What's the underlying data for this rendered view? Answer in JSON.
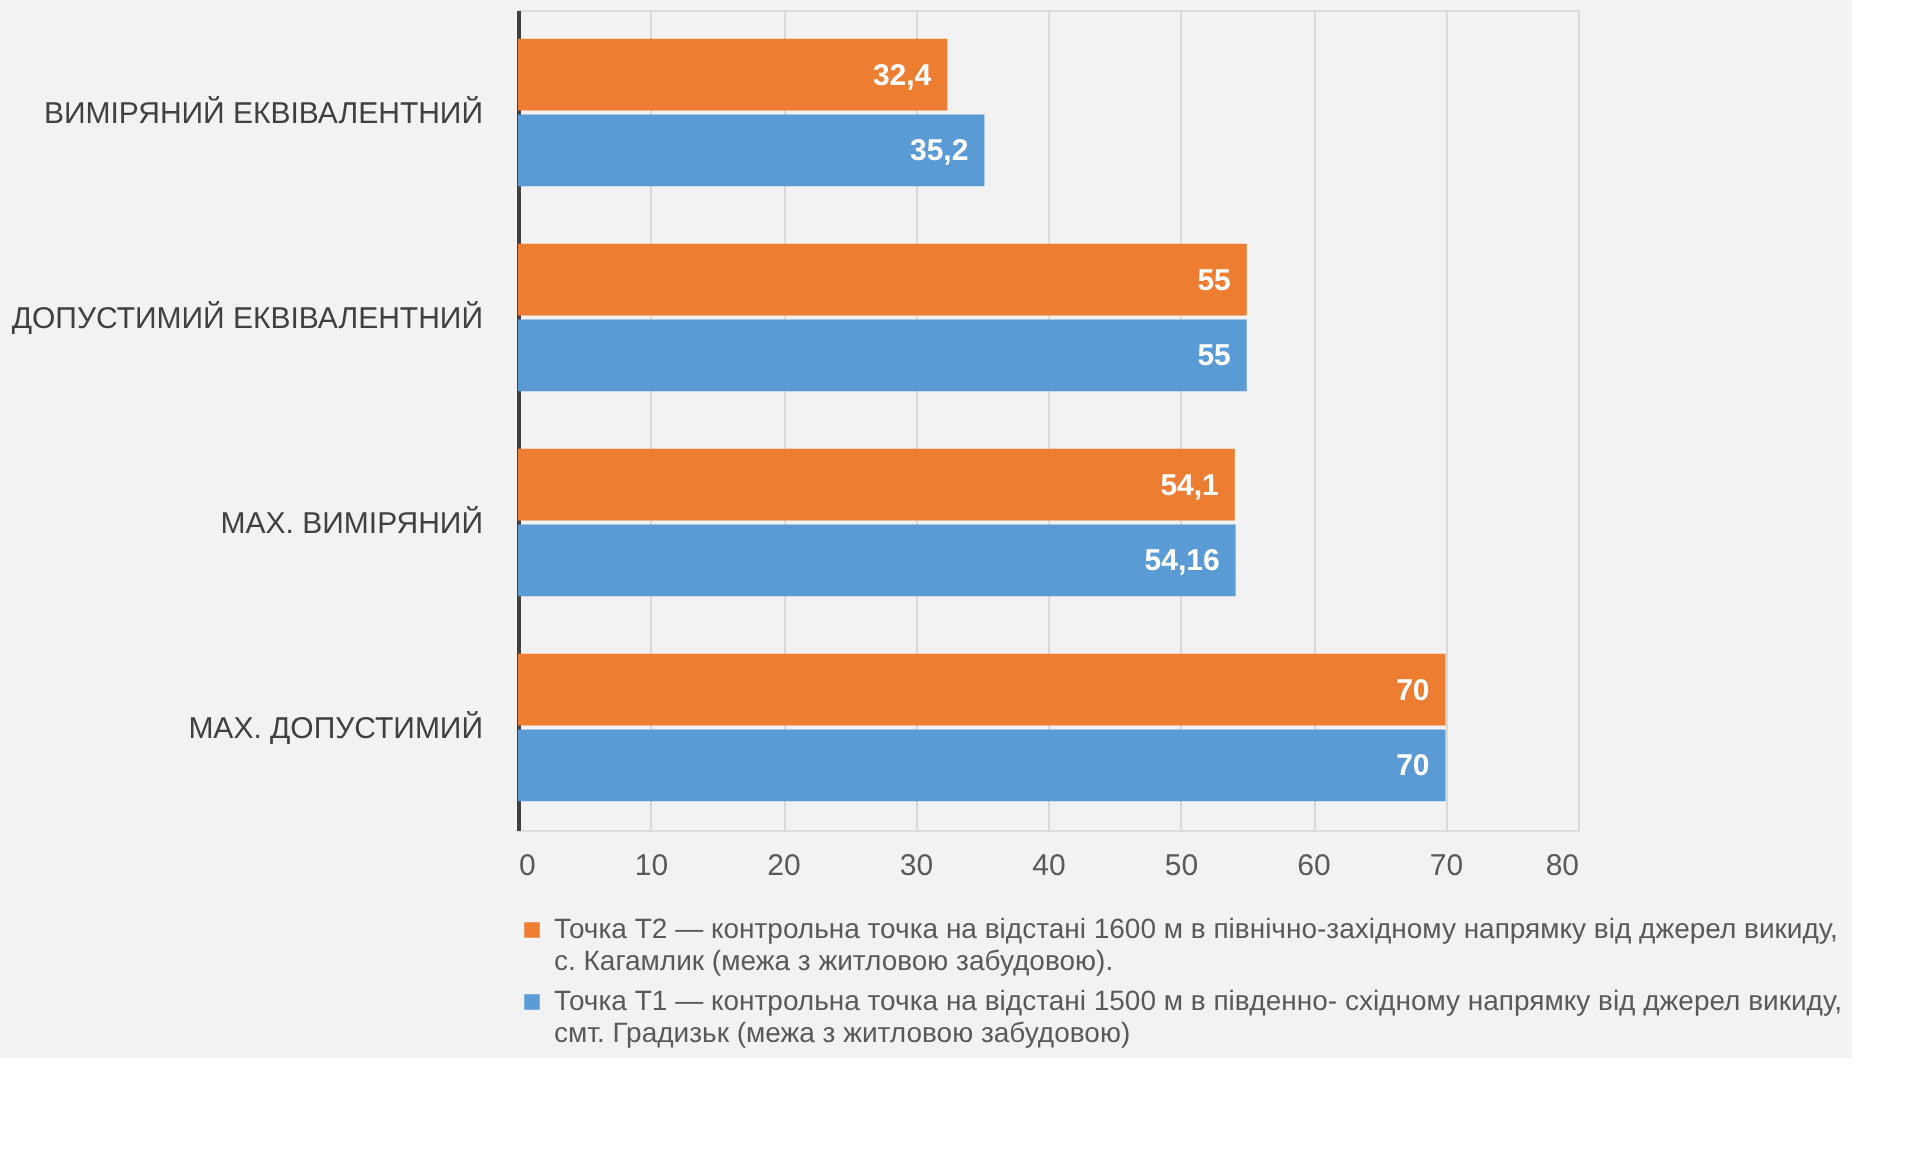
{
  "chart_data": {
    "type": "bar",
    "orientation": "horizontal",
    "categories": [
      "ВИМІРЯНИЙ ЕКВІВАЛЕНТНИЙ",
      "ДОПУСТИМИЙ ЕКВІВАЛЕНТНИЙ",
      "MAX. ВИМІРЯНИЙ",
      "MAX. ДОПУСТИМИЙ"
    ],
    "series": [
      {
        "name": "Точка Т2 — контрольна точка на відстані 1600 м в північно-західному напрямку від джерел викиду, с. Кагамлик (межа з житловою забудовою).",
        "color": "#ed7d31",
        "values": [
          32.4,
          55,
          54.1,
          70
        ],
        "value_labels": [
          "32,4",
          "55",
          "54,1",
          "70"
        ]
      },
      {
        "name": "Точка Т1 — контрольна точка на відстані 1500 м в південно- східному напрямку від джерел викиду, смт. Градизьк (межа з житловою забудовою)",
        "color": "#5b9bd5",
        "values": [
          35.2,
          55,
          54.16,
          70
        ],
        "value_labels": [
          "35,2",
          "55",
          "54,16",
          "70"
        ]
      }
    ],
    "xlim": [
      0,
      80
    ],
    "xticks": [
      0,
      10,
      20,
      30,
      40,
      50,
      60,
      70,
      80
    ],
    "grid": "x",
    "legend": "bottom"
  }
}
